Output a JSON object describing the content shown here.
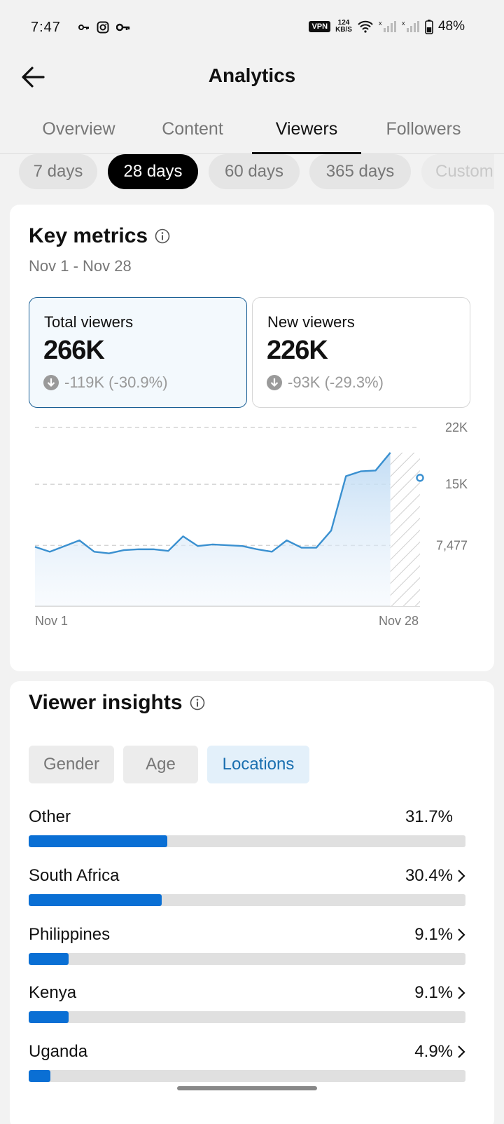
{
  "status_bar": {
    "time": "7:47",
    "vpn": "VPN",
    "speed_value": "124",
    "speed_unit": "KB/S",
    "battery": "48%"
  },
  "header": {
    "title": "Analytics"
  },
  "tabs": [
    {
      "label": "Overview",
      "active": false
    },
    {
      "label": "Content",
      "active": false
    },
    {
      "label": "Viewers",
      "active": true
    },
    {
      "label": "Followers",
      "active": false
    }
  ],
  "ranges": [
    {
      "label": "7 days",
      "active": false
    },
    {
      "label": "28 days",
      "active": true
    },
    {
      "label": "60 days",
      "active": false
    },
    {
      "label": "365 days",
      "active": false
    },
    {
      "label": "Custom",
      "active": false
    }
  ],
  "key_metrics": {
    "title": "Key metrics",
    "date_range": "Nov 1 - Nov 28",
    "cards": [
      {
        "label": "Total viewers",
        "value": "266K",
        "delta": "-119K (-30.9%)",
        "selected": true
      },
      {
        "label": "New viewers",
        "value": "226K",
        "delta": "-93K (-29.3%)",
        "selected": false
      }
    ]
  },
  "chart_data": {
    "type": "area",
    "x_start_label": "Nov 1",
    "x_end_label": "Nov 28",
    "y_ticks": [
      "22K",
      "15K",
      "7,477"
    ],
    "y_tick_values": [
      22000,
      15000,
      7477
    ],
    "ylim": [
      0,
      22000
    ],
    "grid": true,
    "series": [
      {
        "values": [
          7300,
          6700,
          7400,
          8100,
          6700,
          6500,
          6900,
          7000,
          7000,
          6800,
          8600,
          7400,
          7600,
          7500,
          7400,
          7000,
          6700,
          8100,
          7200,
          7200,
          9300,
          16000,
          16600,
          16700,
          18900
        ],
        "projected_last": 15800
      }
    ],
    "accent": "#3a90d0"
  },
  "viewer_insights": {
    "title": "Viewer insights",
    "segments": [
      {
        "label": "Gender",
        "active": false
      },
      {
        "label": "Age",
        "active": false
      },
      {
        "label": "Locations",
        "active": true
      }
    ],
    "locations": [
      {
        "name": "Other",
        "percent": "31.7%",
        "value": 31.7,
        "has_chevron": false
      },
      {
        "name": "South Africa",
        "percent": "30.4%",
        "value": 30.4,
        "has_chevron": true
      },
      {
        "name": "Philippines",
        "percent": "9.1%",
        "value": 9.1,
        "has_chevron": true
      },
      {
        "name": "Kenya",
        "percent": "9.1%",
        "value": 9.1,
        "has_chevron": true
      },
      {
        "name": "Uganda",
        "percent": "4.9%",
        "value": 4.9,
        "has_chevron": true
      }
    ]
  }
}
